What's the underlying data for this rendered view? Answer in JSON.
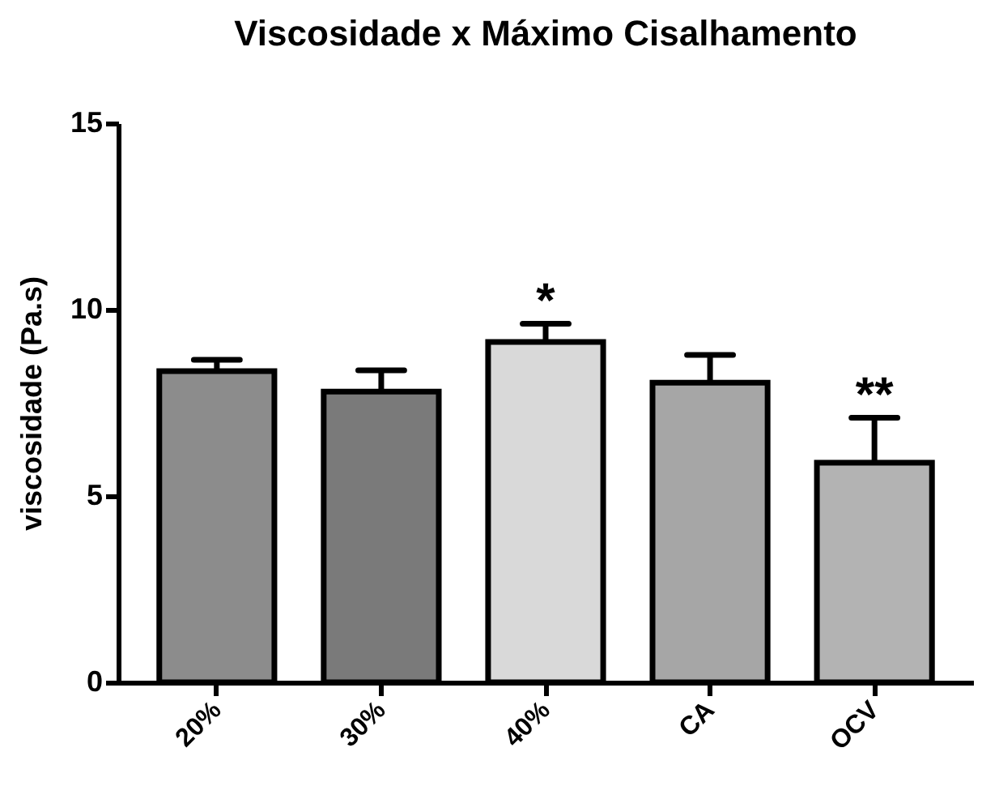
{
  "chart_data": {
    "type": "bar",
    "title": "Viscosidade  x Máximo Cisalhamento",
    "ylabel": "viscosidade (Pa.s)",
    "categories": [
      "20%",
      "30%",
      "40%",
      "CA",
      "OCV"
    ],
    "values": [
      8.35,
      7.8,
      9.13,
      8.04,
      5.89
    ],
    "errors": [
      [
        8.35,
        8.65
      ],
      [
        7.8,
        8.37
      ],
      [
        9.13,
        9.62
      ],
      [
        8.04,
        8.78
      ],
      [
        5.89,
        7.1
      ]
    ],
    "colors": [
      "#8c8c8c",
      "#7a7a7a",
      "#d9d9d9",
      "#a6a6a6",
      "#b3b3b3"
    ],
    "ylim": [
      0,
      15
    ],
    "yticks": [
      0,
      5,
      10,
      15
    ],
    "grid": false,
    "annotations": [
      {
        "text": "*",
        "x": "40%",
        "y": 9.62
      },
      {
        "text": "**",
        "x": "OCV",
        "y": 7.1
      }
    ]
  }
}
